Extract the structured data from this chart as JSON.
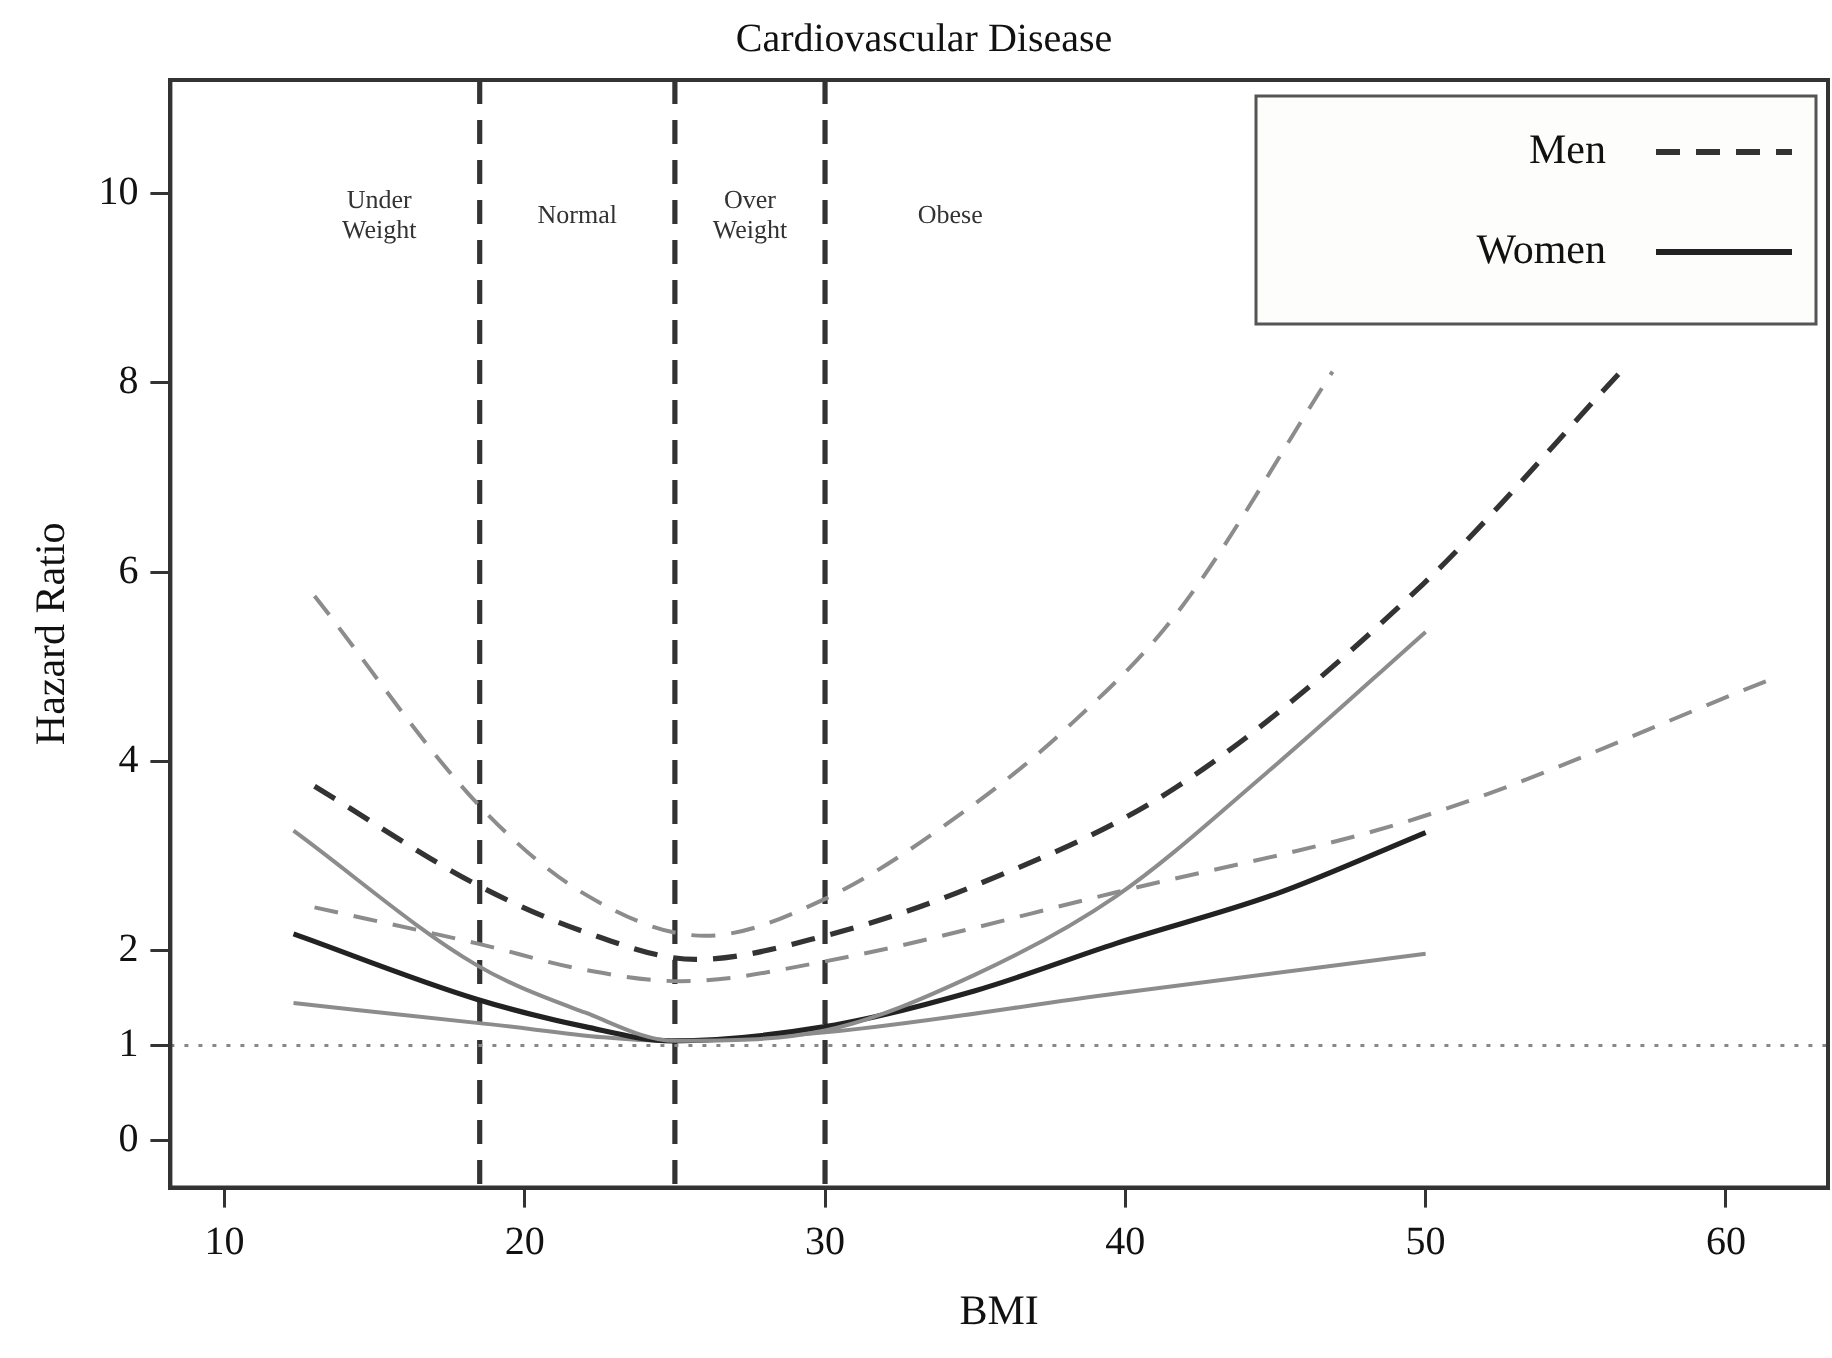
{
  "chart_data": {
    "type": "line",
    "title": "Cardiovascular Disease",
    "xlabel": "BMI",
    "ylabel": "Hazard Ratio",
    "xlim": [
      8.2,
      63.4
    ],
    "xticks": [
      10,
      20,
      30,
      40,
      50,
      60
    ],
    "ylim": [
      -0.5,
      11.2
    ],
    "yticks": [
      0,
      1,
      2,
      4,
      6,
      8,
      10
    ],
    "legend": "top right",
    "series": [
      {
        "color": "#8c8c8c",
        "line_style": "dashed",
        "x": [
          13.0,
          18.5,
          22,
          26.0,
          30,
          34.75,
          38.0,
          41.7,
          46.9
        ],
        "values": [
          5.75,
          3.53,
          2.6,
          2.16,
          2.55,
          3.5,
          4.34,
          5.56,
          8.12
        ]
      },
      {
        "name": "Men",
        "color": "#333333",
        "line_style": "dashed",
        "x": [
          13.0,
          18.4,
          22,
          25.7,
          30,
          34.75,
          41.7,
          49.9,
          56.5
        ],
        "values": [
          3.74,
          2.7,
          2.2,
          1.91,
          2.16,
          2.66,
          3.73,
          5.87,
          8.12
        ]
      },
      {
        "color": "#8c8c8c",
        "line_style": "dashed",
        "x": [
          13.0,
          18.4,
          22,
          25.2,
          30,
          39.7,
          49.9,
          61.5
        ],
        "values": [
          2.46,
          2.08,
          1.8,
          1.68,
          1.89,
          2.62,
          3.42,
          4.87
        ]
      },
      {
        "color": "#8c8c8c",
        "line_style": "solid",
        "x": [
          12.3,
          18.4,
          22,
          25.0,
          30,
          35,
          39.7,
          44.7,
          50
        ],
        "values": [
          3.27,
          1.85,
          1.35,
          1.05,
          1.16,
          1.75,
          2.58,
          3.88,
          5.37
        ]
      },
      {
        "name": "Women",
        "color": "#222222",
        "line_style": "solid",
        "x": [
          12.3,
          18.4,
          22,
          24.9,
          30,
          35,
          39.7,
          45,
          50
        ],
        "values": [
          2.18,
          1.49,
          1.2,
          1.05,
          1.2,
          1.58,
          2.08,
          2.6,
          3.25
        ]
      },
      {
        "color": "#8c8c8c",
        "line_style": "solid",
        "x": [
          12.3,
          18.4,
          24.9,
          30,
          39.7,
          50
        ],
        "values": [
          1.45,
          1.24,
          1.05,
          1.14,
          1.55,
          1.97
        ]
      }
    ],
    "ref_lines": [
      {
        "axis": "x",
        "value": 18.5,
        "color": "#333333",
        "line_style": "dashed"
      },
      {
        "axis": "x",
        "value": 25,
        "color": "#333333",
        "line_style": "dashed"
      },
      {
        "axis": "x",
        "value": 30,
        "color": "#333333",
        "line_style": "dashed"
      },
      {
        "axis": "y",
        "value": 1,
        "color": "#888888",
        "line_style": "dotted"
      }
    ],
    "annotations": [
      "Under\nWeight",
      "Normal",
      "Over\nWeight",
      "Obese"
    ]
  }
}
